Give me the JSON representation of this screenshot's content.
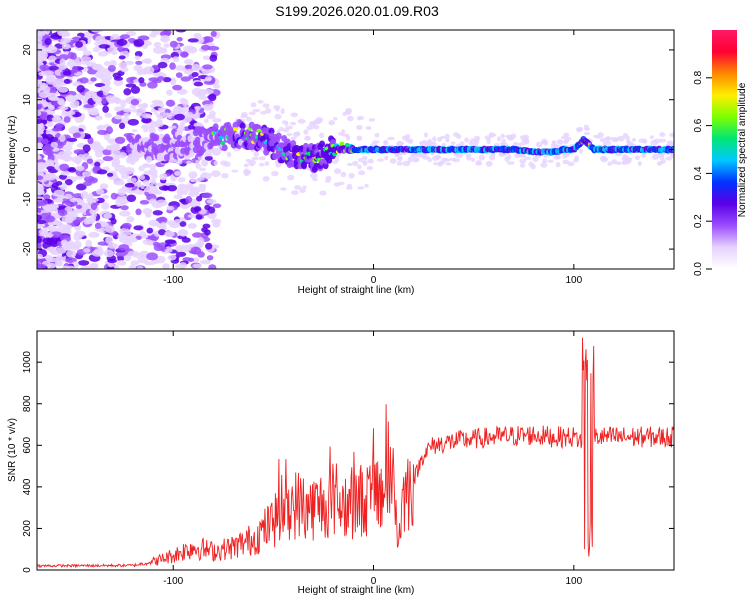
{
  "figure": {
    "title": "S199.2026.020.01.09.R03"
  },
  "chart_data": [
    {
      "type": "heatmap",
      "name": "spectrogram",
      "xlabel": "Height of straight line (km)",
      "ylabel": "Frequency (Hz)",
      "xlim": [
        -168,
        150
      ],
      "ylim": [
        -24,
        24
      ],
      "xticks": [
        -100,
        0,
        100
      ],
      "yticks": [
        -20,
        -10,
        0,
        10,
        20
      ],
      "xtick_labels": [
        "-100",
        "0",
        "100"
      ],
      "ytick_labels": [
        "-20",
        "-10",
        "0",
        "10",
        "20"
      ],
      "colorbar": {
        "label": "Normalized spectral amplitude",
        "range": [
          0,
          1
        ],
        "ticks": [
          0.0,
          0.2,
          0.4,
          0.6,
          0.8
        ],
        "tick_labels": [
          "0.0",
          "0.2",
          "0.4",
          "0.6",
          "0.8"
        ],
        "colormap": [
          "#ffffff",
          "#e6d2ff",
          "#9b4dff",
          "#5a00e6",
          "#0033ff",
          "#00c8ff",
          "#00e676",
          "#7dff00",
          "#ffee00",
          "#ff8800",
          "#ff0033",
          "#ff1a66"
        ]
      },
      "ridge": {
        "description_points_x": [
          -120,
          -100,
          -80,
          -70,
          -60,
          -50,
          -40,
          -30,
          -20,
          -10,
          0,
          10,
          20,
          40,
          60,
          70,
          80,
          90,
          95,
          100,
          105,
          110,
          120,
          150
        ],
        "description_points_y": [
          0,
          1,
          2,
          3,
          3,
          1,
          -1,
          -2,
          0,
          0,
          0,
          0,
          0,
          0,
          0,
          0,
          -0.5,
          -0.5,
          0,
          0,
          2,
          0,
          0,
          0
        ]
      }
    },
    {
      "type": "line",
      "name": "snr",
      "xlabel": "Height of straight line (km)",
      "ylabel": "SNR (10 * v/v)",
      "xlim": [
        -168,
        150
      ],
      "ylim": [
        0,
        1150
      ],
      "xticks": [
        -100,
        0,
        100
      ],
      "yticks": [
        0,
        200,
        400,
        600,
        800,
        1000
      ],
      "xtick_labels": [
        "-100",
        "0",
        "100"
      ],
      "ytick_labels": [
        "0",
        "200",
        "400",
        "600",
        "800",
        "1000"
      ],
      "color": "#ee2222",
      "envelope_x": [
        -168,
        -120,
        -110,
        -100,
        -90,
        -80,
        -70,
        -60,
        -50,
        -40,
        -30,
        -20,
        -15,
        -10,
        0,
        5,
        10,
        12,
        15,
        20,
        25,
        30,
        40,
        60,
        80,
        90,
        100,
        104,
        106,
        107,
        108,
        110,
        112,
        120,
        150
      ],
      "envelope_y": [
        20,
        22,
        40,
        70,
        110,
        90,
        110,
        150,
        230,
        320,
        300,
        340,
        320,
        330,
        350,
        380,
        480,
        120,
        360,
        430,
        560,
        600,
        620,
        640,
        650,
        640,
        640,
        620,
        500,
        300,
        600,
        640,
        640,
        640,
        640
      ]
    }
  ]
}
